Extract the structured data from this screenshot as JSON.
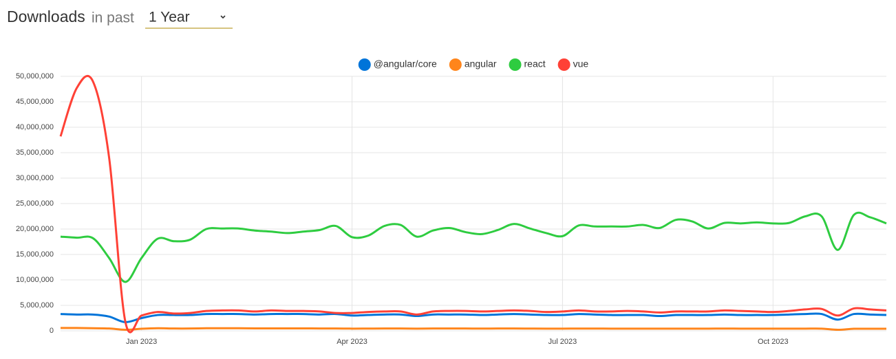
{
  "header": {
    "title": "Downloads",
    "subtitle": "in past",
    "period": "1 Year"
  },
  "chart_data": {
    "type": "line",
    "categories": [
      null,
      null,
      null,
      null,
      null,
      "Jan 2023",
      null,
      null,
      null,
      null,
      null,
      null,
      null,
      null,
      null,
      null,
      null,
      null,
      "Apr 2023",
      null,
      null,
      null,
      null,
      null,
      null,
      null,
      null,
      null,
      null,
      null,
      null,
      "Jul 2023",
      null,
      null,
      null,
      null,
      null,
      null,
      null,
      null,
      null,
      null,
      null,
      null,
      "Oct 2023",
      null,
      null,
      null,
      null,
      null,
      null,
      null
    ],
    "series": [
      {
        "name": "@angular/core",
        "color": "#0074d9",
        "values": [
          3300000,
          3200000,
          3200000,
          2800000,
          1700000,
          2500000,
          3100000,
          3100000,
          3100000,
          3300000,
          3300000,
          3300000,
          3200000,
          3300000,
          3300000,
          3300000,
          3200000,
          3300000,
          3000000,
          3100000,
          3200000,
          3200000,
          2900000,
          3200000,
          3200000,
          3200000,
          3100000,
          3200000,
          3300000,
          3200000,
          3100000,
          3100000,
          3300000,
          3200000,
          3100000,
          3100000,
          3100000,
          2900000,
          3100000,
          3100000,
          3100000,
          3200000,
          3100000,
          3100000,
          3100000,
          3200000,
          3300000,
          3300000,
          2200000,
          3300000,
          3200000,
          3100000
        ]
      },
      {
        "name": "angular",
        "color": "#ff851b",
        "values": [
          550000,
          550000,
          500000,
          450000,
          200000,
          400000,
          500000,
          450000,
          450000,
          500000,
          500000,
          500000,
          480000,
          480000,
          470000,
          470000,
          460000,
          460000,
          430000,
          440000,
          450000,
          450000,
          420000,
          450000,
          450000,
          450000,
          440000,
          450000,
          450000,
          440000,
          430000,
          430000,
          440000,
          440000,
          430000,
          430000,
          430000,
          420000,
          430000,
          430000,
          430000,
          440000,
          430000,
          430000,
          420000,
          430000,
          430000,
          430000,
          200000,
          400000,
          400000,
          400000
        ]
      },
      {
        "name": "react",
        "color": "#2ecc40",
        "values": [
          18500000,
          18300000,
          18200000,
          14300000,
          9600000,
          14300000,
          18100000,
          17600000,
          17900000,
          20000000,
          20100000,
          20100000,
          19700000,
          19500000,
          19200000,
          19500000,
          19800000,
          20600000,
          18400000,
          18700000,
          20600000,
          20800000,
          18500000,
          19700000,
          20200000,
          19400000,
          19000000,
          19800000,
          21000000,
          20100000,
          19200000,
          18600000,
          20700000,
          20500000,
          20500000,
          20500000,
          20800000,
          20200000,
          21800000,
          21500000,
          20100000,
          21200000,
          21100000,
          21300000,
          21100000,
          21200000,
          22500000,
          22500000,
          15900000,
          22800000,
          22300000,
          21100000
        ]
      },
      {
        "name": "vue",
        "color": "#ff4136",
        "values": [
          38200000,
          47700000,
          49000000,
          34000000,
          1800000,
          3000000,
          3700000,
          3400000,
          3500000,
          3900000,
          4000000,
          4000000,
          3800000,
          4000000,
          3900000,
          3900000,
          3800000,
          3500000,
          3500000,
          3700000,
          3800000,
          3800000,
          3200000,
          3800000,
          3900000,
          3900000,
          3800000,
          3900000,
          4000000,
          3900000,
          3700000,
          3800000,
          4000000,
          3800000,
          3800000,
          3900000,
          3800000,
          3600000,
          3800000,
          3800000,
          3800000,
          4000000,
          3900000,
          3800000,
          3700000,
          3900000,
          4200000,
          4300000,
          3000000,
          4400000,
          4200000,
          4000000
        ]
      }
    ],
    "ylim": [
      0,
      50000000
    ],
    "yticks": [
      0,
      {
        "value": 5000000,
        "label": "5,000,000"
      },
      {
        "value": 10000000,
        "label": "10,000,000"
      },
      {
        "value": 15000000,
        "label": "15,000,000"
      },
      {
        "value": 20000000,
        "label": "20,000,000"
      },
      {
        "value": 25000000,
        "label": "25,000,000"
      },
      {
        "value": 30000000,
        "label": "30,000,000"
      },
      {
        "value": 35000000,
        "label": "35,000,000"
      },
      {
        "value": 40000000,
        "label": "40,000,000"
      },
      {
        "value": 45000000,
        "label": "45,000,000"
      },
      {
        "value": 50000000,
        "label": "50,000,000"
      }
    ],
    "grid": true,
    "legend": "top"
  }
}
